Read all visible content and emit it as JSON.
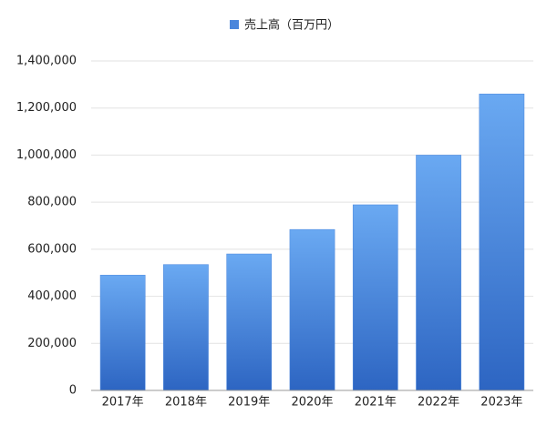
{
  "chart_data": {
    "type": "bar",
    "series": [
      {
        "name": "売上高（百万円）",
        "color": "#4a86dc",
        "values": [
          490000,
          535000,
          580000,
          684000,
          789000,
          1000000,
          1260000
        ]
      }
    ],
    "categories": [
      "2017年",
      "2018年",
      "2019年",
      "2020年",
      "2021年",
      "2022年",
      "2023年"
    ],
    "ylim": [
      0,
      1400000
    ],
    "yticks": [
      0,
      {
        "value": 200000,
        "label": "200,000"
      },
      {
        "value": 400000,
        "label": "400,000"
      },
      {
        "value": 600000,
        "label": "600,000"
      },
      {
        "value": 800000,
        "label": "800,000"
      },
      {
        "value": 1000000,
        "label": "1,000,000"
      },
      {
        "value": 1200000,
        "label": "1,200,000"
      },
      {
        "value": 1400000,
        "label": "1,400,000"
      }
    ],
    "grid": true,
    "legend": "top"
  }
}
